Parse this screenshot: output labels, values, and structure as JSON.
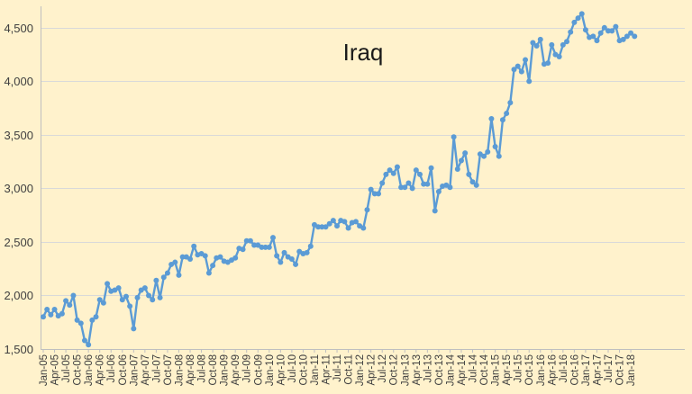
{
  "chart_data": {
    "type": "line",
    "title": "Iraq",
    "xlabel": "",
    "ylabel": "",
    "ylim": [
      1500,
      4700
    ],
    "yticks": [
      1500,
      2000,
      2500,
      3000,
      3500,
      4000,
      4500
    ],
    "ytick_labels": [
      "1,500",
      "2,000",
      "2,500",
      "3,000",
      "3,500",
      "4,000",
      "4,500"
    ],
    "xtick_labels": [
      "Jan-05",
      "Apr-05",
      "Jul-05",
      "Oct-05",
      "Jan-06",
      "Apr-06",
      "Jul-06",
      "Oct-06",
      "Jan-07",
      "Apr-07",
      "Jul-07",
      "Oct-07",
      "Jan-08",
      "Apr-08",
      "Jul-08",
      "Oct-08",
      "Jan-09",
      "Apr-09",
      "Jul-09",
      "Oct-09",
      "Jan-10",
      "Apr-10",
      "Jul-10",
      "Oct-10",
      "Jan-11",
      "Apr-11",
      "Jul-11",
      "Oct-11",
      "Jan-12",
      "Apr-12",
      "Jul-12",
      "Oct-12",
      "Jan-13",
      "Apr-13",
      "Jul-13",
      "Oct-13",
      "Jan-14",
      "Apr-14",
      "Jul-14",
      "Oct-14",
      "Jan-15",
      "Apr-15",
      "Jul-15",
      "Oct-15",
      "Jan-16",
      "Apr-16",
      "Jul-16",
      "Oct-16",
      "Jan-17",
      "Apr-17",
      "Jul-17",
      "Oct-17",
      "Jan-18"
    ],
    "grid": true,
    "line_color": "#5B9BD5",
    "series": [
      {
        "values": [
          1800,
          1870,
          1820,
          1870,
          1810,
          1830,
          1950,
          1910,
          2000,
          1770,
          1740,
          1580,
          1540,
          1770,
          1800,
          1960,
          1930,
          2110,
          2040,
          2050,
          2070,
          1960,
          1990,
          1900,
          1690,
          1980,
          2050,
          2070,
          2000,
          1960,
          2140,
          1980,
          2170,
          2210,
          2290,
          2310,
          2190,
          2360,
          2360,
          2340,
          2460,
          2380,
          2390,
          2370,
          2210,
          2280,
          2350,
          2360,
          2320,
          2310,
          2330,
          2350,
          2440,
          2430,
          2510,
          2510,
          2470,
          2470,
          2450,
          2450,
          2450,
          2540,
          2370,
          2310,
          2400,
          2360,
          2340,
          2290,
          2410,
          2390,
          2400,
          2460,
          2660,
          2640,
          2640,
          2640,
          2670,
          2700,
          2650,
          2700,
          2690,
          2630,
          2680,
          2690,
          2650,
          2630,
          2800,
          2990,
          2950,
          2950,
          3050,
          3130,
          3170,
          3140,
          3200,
          3010,
          3010,
          3050,
          3000,
          3170,
          3130,
          3040,
          3040,
          3190,
          2790,
          2970,
          3020,
          3030,
          3010,
          3480,
          3180,
          3260,
          3330,
          3130,
          3060,
          3030,
          3320,
          3300,
          3340,
          3650,
          3390,
          3300,
          3640,
          3700,
          3800,
          4110,
          4140,
          4090,
          4200,
          4000,
          4360,
          4330,
          4390,
          4160,
          4170,
          4340,
          4250,
          4230,
          4340,
          4370,
          4460,
          4550,
          4590,
          4630,
          4480,
          4410,
          4420,
          4380,
          4450,
          4500,
          4470,
          4470,
          4510,
          4380,
          4390,
          4420,
          4450,
          4420
        ]
      }
    ]
  }
}
